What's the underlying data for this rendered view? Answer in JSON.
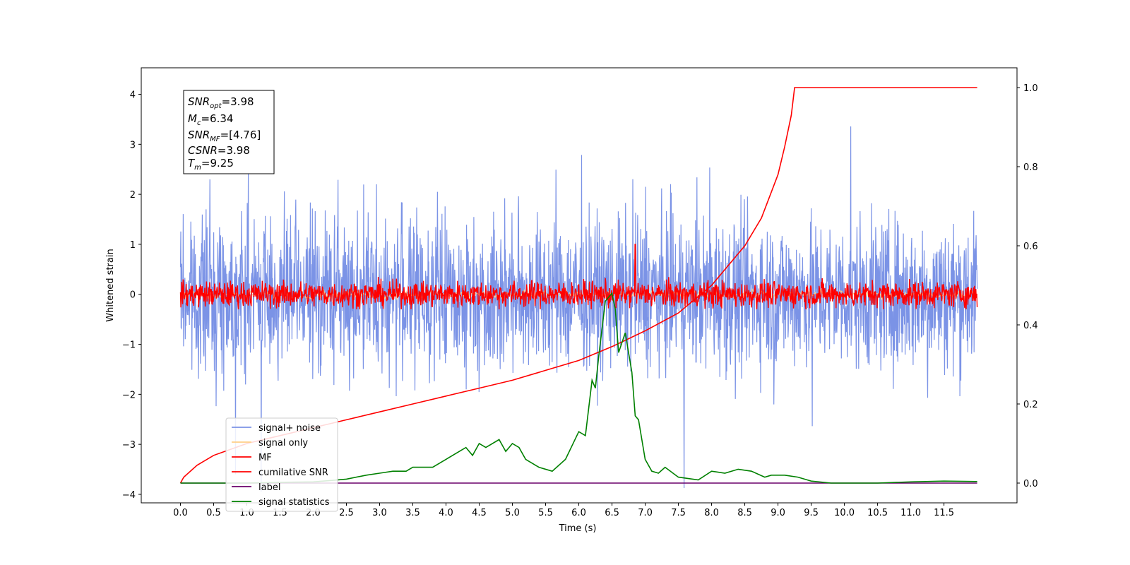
{
  "chart_data": {
    "type": "line",
    "xlabel": "Time (s)",
    "ylabel": "Whitened strain",
    "xlim": [
      -0.59,
      12.6
    ],
    "ylim": [
      -4.17,
      4.53
    ],
    "ylim_right": [
      -0.05,
      1.05
    ],
    "x_ticks": [
      "0.0",
      "0.5",
      "1.0",
      "1.5",
      "2.0",
      "2.5",
      "3.0",
      "3.5",
      "4.0",
      "4.5",
      "5.0",
      "5.5",
      "6.0",
      "6.5",
      "7.0",
      "7.5",
      "8.0",
      "8.5",
      "9.0",
      "9.5",
      "10.0",
      "10.5",
      "11.0",
      "11.5"
    ],
    "y_ticks": [
      "4",
      "3",
      "2",
      "1",
      "0",
      "−1",
      "−2",
      "−3",
      "−4"
    ],
    "y_ticks_right": [
      "1.0",
      "0.8",
      "0.6",
      "0.4",
      "0.2",
      "0.0"
    ],
    "info_box": {
      "snr_opt": {
        "sym": "SNR",
        "sub": "opt",
        "val": "=3.98"
      },
      "mc": {
        "sym": "M",
        "sub": "c",
        "val": "=6.34"
      },
      "snr_mf": {
        "sym": "SNR",
        "sub": "MF",
        "val": "=[4.76]"
      },
      "csnr": {
        "sym": "CSNR",
        "sub": "",
        "val": "=3.98"
      },
      "tm": {
        "sym": "T",
        "sub": "m",
        "val": "=9.25"
      }
    },
    "legend": {
      "placement": "lower-left",
      "entries": [
        {
          "label": "signal+ noise",
          "color": "#7b93e6"
        },
        {
          "label": "signal only",
          "color": "#ffcf87"
        },
        {
          "label": "MF",
          "color": "#ff0000"
        },
        {
          "label": "cumilative SNR",
          "color": "#ff0000"
        },
        {
          "label": "label",
          "color": "#6a006a"
        },
        {
          "label": "signal statistics",
          "color": "#008000"
        }
      ]
    },
    "series": [
      {
        "name": "signal+ noise",
        "axis": "left",
        "color": "#7b93e6",
        "x_range": [
          0,
          12
        ],
        "envelope": [
          -2.3,
          2.5
        ],
        "peak_max": 4.17,
        "peak_min": -3.95
      },
      {
        "name": "signal only",
        "axis": "left",
        "color": "#ffcf87",
        "x_range": [
          0,
          12
        ],
        "values_note": ""
      },
      {
        "name": "MF",
        "axis": "left",
        "color": "#ff0000",
        "x_range": [
          0,
          12
        ],
        "envelope": [
          -0.3,
          0.45
        ],
        "spike_x": 6.85,
        "spike_y": 1.0
      },
      {
        "name": "cumilative SNR",
        "axis": "right",
        "color": "#ff0000",
        "x": [
          0,
          0.05,
          0.25,
          0.5,
          1.0,
          1.5,
          2.0,
          2.5,
          3.0,
          3.5,
          4.0,
          4.5,
          5.0,
          5.5,
          6.0,
          6.5,
          7.0,
          7.5,
          8.0,
          8.5,
          8.75,
          9.0,
          9.1,
          9.2,
          9.25,
          12.0
        ],
        "y": [
          0.0,
          0.015,
          0.045,
          0.07,
          0.1,
          0.12,
          0.14,
          0.16,
          0.18,
          0.2,
          0.22,
          0.24,
          0.26,
          0.285,
          0.31,
          0.345,
          0.385,
          0.43,
          0.5,
          0.6,
          0.67,
          0.78,
          0.85,
          0.93,
          1.0,
          1.0
        ]
      },
      {
        "name": "label",
        "axis": "right",
        "color": "#6a006a",
        "x": [
          0,
          12
        ],
        "y": [
          0,
          0
        ]
      },
      {
        "name": "signal statistics",
        "axis": "right",
        "color": "#008000",
        "x": [
          0,
          0.5,
          1.0,
          1.5,
          2.0,
          2.3,
          2.5,
          2.8,
          3.0,
          3.2,
          3.4,
          3.5,
          3.6,
          3.8,
          4.0,
          4.2,
          4.3,
          4.4,
          4.5,
          4.6,
          4.8,
          4.9,
          5.0,
          5.1,
          5.2,
          5.4,
          5.6,
          5.8,
          6.0,
          6.1,
          6.2,
          6.25,
          6.3,
          6.4,
          6.5,
          6.55,
          6.6,
          6.7,
          6.8,
          6.85,
          6.9,
          7.0,
          7.1,
          7.2,
          7.3,
          7.5,
          7.8,
          8.0,
          8.2,
          8.4,
          8.6,
          8.8,
          8.9,
          9.1,
          9.3,
          9.5,
          9.8,
          10.5,
          11.0,
          11.5,
          12.0
        ],
        "y": [
          0.0,
          0.0,
          0.0,
          0.002,
          0.003,
          0.007,
          0.01,
          0.02,
          0.025,
          0.03,
          0.03,
          0.04,
          0.04,
          0.04,
          0.06,
          0.08,
          0.09,
          0.07,
          0.1,
          0.09,
          0.11,
          0.08,
          0.1,
          0.09,
          0.06,
          0.04,
          0.03,
          0.06,
          0.13,
          0.12,
          0.26,
          0.24,
          0.32,
          0.46,
          0.48,
          0.44,
          0.33,
          0.38,
          0.28,
          0.17,
          0.16,
          0.06,
          0.03,
          0.025,
          0.04,
          0.015,
          0.008,
          0.03,
          0.025,
          0.035,
          0.03,
          0.015,
          0.02,
          0.02,
          0.015,
          0.005,
          0.0,
          0.0,
          0.003,
          0.005,
          0.004
        ]
      }
    ]
  }
}
